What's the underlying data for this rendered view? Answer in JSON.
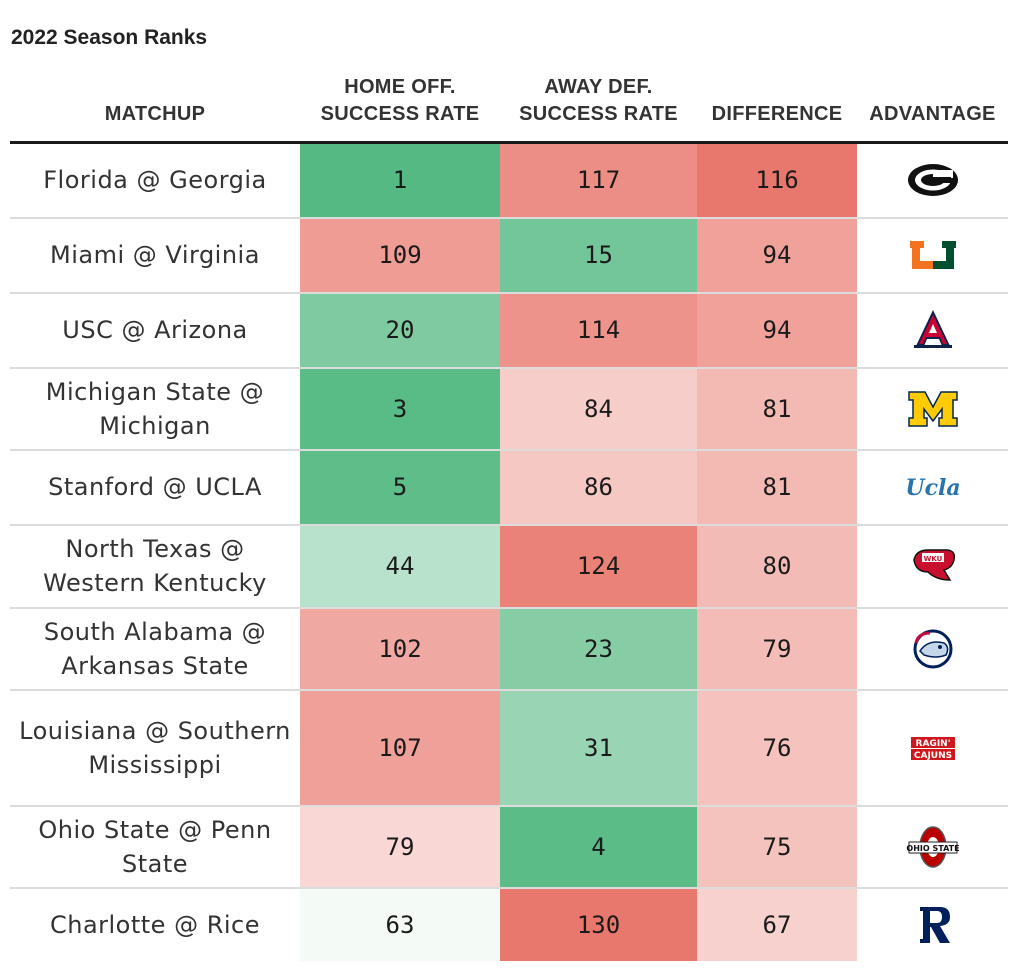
{
  "chart_data": {
    "type": "table",
    "subtitle": "2022 Season Ranks",
    "columns": [
      {
        "line1": "",
        "line2": "MATCHUP"
      },
      {
        "line1": "HOME OFF.",
        "line2": "SUCCESS RATE"
      },
      {
        "line1": "AWAY DEF.",
        "line2": "SUCCESS RATE"
      },
      {
        "line1": "",
        "line2": "DIFFERENCE"
      },
      {
        "line1": "",
        "line2": "ADVANTAGE"
      }
    ],
    "rows": [
      {
        "matchup": "Florida @ Georgia",
        "home_off": 1,
        "away_def": 117,
        "difference": 116,
        "advantage": "georgia-logo-icon"
      },
      {
        "matchup": "Miami @ Virginia",
        "home_off": 109,
        "away_def": 15,
        "difference": 94,
        "advantage": "miami-logo-icon"
      },
      {
        "matchup": "USC @ Arizona",
        "home_off": 20,
        "away_def": 114,
        "difference": 94,
        "advantage": "arizona-logo-icon"
      },
      {
        "matchup": "Michigan State @ Michigan",
        "home_off": 3,
        "away_def": 84,
        "difference": 81,
        "advantage": "michigan-logo-icon"
      },
      {
        "matchup": "Stanford @ UCLA",
        "home_off": 5,
        "away_def": 86,
        "difference": 81,
        "advantage": "ucla-logo-icon"
      },
      {
        "matchup": "North Texas @ Western Kentucky",
        "home_off": 44,
        "away_def": 124,
        "difference": 80,
        "advantage": "western-kentucky-logo-icon"
      },
      {
        "matchup": "South Alabama @ Arkansas State",
        "home_off": 102,
        "away_def": 23,
        "difference": 79,
        "advantage": "south-alabama-logo-icon"
      },
      {
        "matchup": "Louisiana @ Southern Mississippi",
        "home_off": 107,
        "away_def": 31,
        "difference": 76,
        "advantage": "louisiana-logo-icon"
      },
      {
        "matchup": "Ohio State @ Penn State",
        "home_off": 79,
        "away_def": 4,
        "difference": 75,
        "advantage": "ohio-state-logo-icon"
      },
      {
        "matchup": "Charlotte @ Rice",
        "home_off": 63,
        "away_def": 130,
        "difference": 67,
        "advantage": "rice-logo-icon"
      }
    ],
    "logo_text": {
      "ucla": "Ucla",
      "wku": "WKU",
      "louisiana_1": "RAGIN'",
      "louisiana_2": "CAJUNS",
      "ohio": "OHIO STATE"
    },
    "colors": {
      "green": "#55b983",
      "red": "#e8786d",
      "white": "#ffffff"
    }
  }
}
